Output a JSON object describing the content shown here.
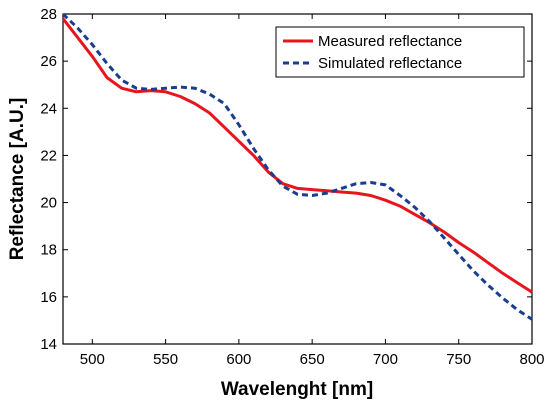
{
  "chart_data": {
    "type": "line",
    "title": "",
    "xlabel": "Wavelenght [nm]",
    "ylabel": "Reflectance [A.U.]",
    "xlim": [
      480,
      800
    ],
    "ylim": [
      14,
      28
    ],
    "xticks": [
      500,
      550,
      600,
      650,
      700,
      750,
      800
    ],
    "yticks": [
      14,
      16,
      18,
      20,
      22,
      24,
      26,
      28
    ],
    "grid": false,
    "legend_position": "top-right",
    "series": [
      {
        "name": "Measured reflectance",
        "color": "#e8141e",
        "style": "solid",
        "x": [
          480,
          490,
          500,
          510,
          520,
          530,
          540,
          550,
          560,
          570,
          580,
          590,
          600,
          610,
          620,
          630,
          640,
          650,
          660,
          670,
          680,
          690,
          700,
          710,
          720,
          730,
          740,
          750,
          760,
          770,
          780,
          790,
          800
        ],
        "y": [
          27.8,
          27.0,
          26.2,
          25.3,
          24.85,
          24.7,
          24.75,
          24.7,
          24.5,
          24.2,
          23.8,
          23.2,
          22.6,
          22.0,
          21.3,
          20.8,
          20.6,
          20.55,
          20.5,
          20.45,
          20.4,
          20.3,
          20.1,
          19.85,
          19.5,
          19.15,
          18.75,
          18.3,
          17.9,
          17.45,
          17.0,
          16.6,
          16.2
        ]
      },
      {
        "name": "Simulated reflectance",
        "color": "#1a3d8f",
        "style": "dashed",
        "x": [
          480,
          490,
          500,
          510,
          520,
          530,
          540,
          550,
          560,
          570,
          580,
          590,
          600,
          610,
          620,
          630,
          640,
          650,
          660,
          670,
          680,
          690,
          700,
          710,
          720,
          730,
          740,
          750,
          760,
          770,
          780,
          790,
          800
        ],
        "y": [
          28.0,
          27.4,
          26.7,
          25.9,
          25.2,
          24.85,
          24.8,
          24.85,
          24.9,
          24.85,
          24.6,
          24.2,
          23.3,
          22.3,
          21.4,
          20.7,
          20.35,
          20.3,
          20.4,
          20.6,
          20.8,
          20.85,
          20.75,
          20.3,
          19.8,
          19.2,
          18.5,
          17.8,
          17.1,
          16.5,
          15.95,
          15.45,
          15.05
        ]
      }
    ]
  }
}
